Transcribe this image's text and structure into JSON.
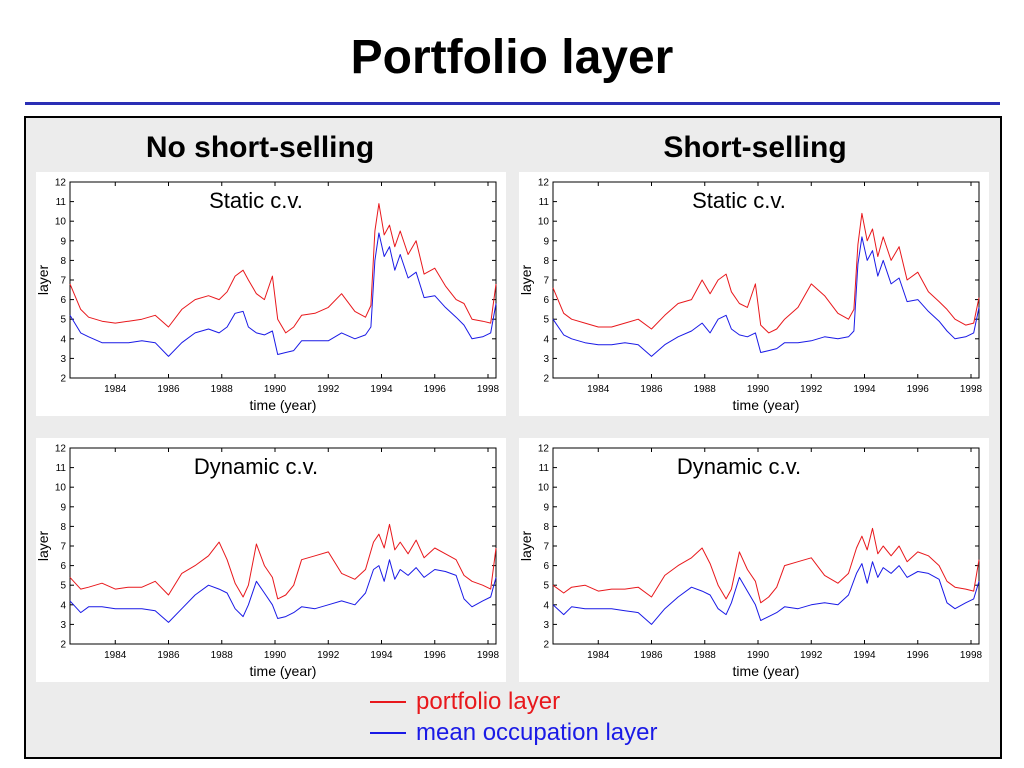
{
  "slide": {
    "title": "Portfolio layer",
    "col_left": "No short-selling",
    "col_right": "Short-selling"
  },
  "legend": [
    {
      "label": "portfolio layer",
      "color": "#e8181c"
    },
    {
      "label": "mean occupation layer",
      "color": "#1a1ae6"
    }
  ],
  "chart_data": [
    {
      "type": "line",
      "id": "nss-static",
      "title": "Static c.v.",
      "xlabel": "time (year)",
      "ylabel": "layer",
      "xlim": [
        1982.3,
        1998.3
      ],
      "ylim": [
        2,
        12
      ],
      "xticks": [
        1984,
        1986,
        1988,
        1990,
        1992,
        1994,
        1996,
        1998
      ],
      "yticks": [
        2,
        3,
        4,
        5,
        6,
        7,
        8,
        9,
        10,
        11,
        12
      ],
      "series": [
        {
          "name": "portfolio layer",
          "color": "#e8181c",
          "x": [
            1982.3,
            1982.7,
            1983.0,
            1983.5,
            1984.0,
            1984.5,
            1985.0,
            1985.5,
            1986.0,
            1986.5,
            1987.0,
            1987.5,
            1987.9,
            1988.2,
            1988.5,
            1988.8,
            1989.0,
            1989.3,
            1989.6,
            1989.9,
            1990.1,
            1990.4,
            1990.7,
            1991.0,
            1991.5,
            1992.0,
            1992.5,
            1993.0,
            1993.4,
            1993.6,
            1993.75,
            1993.9,
            1994.1,
            1994.3,
            1994.5,
            1994.7,
            1995.0,
            1995.3,
            1995.6,
            1996.0,
            1996.4,
            1996.8,
            1997.1,
            1997.4,
            1997.8,
            1998.1,
            1998.3
          ],
          "y": [
            6.8,
            5.5,
            5.1,
            4.9,
            4.8,
            4.9,
            5.0,
            5.2,
            4.6,
            5.5,
            6.0,
            6.2,
            6.0,
            6.4,
            7.2,
            7.5,
            7.0,
            6.3,
            6.0,
            7.2,
            5.0,
            4.3,
            4.6,
            5.2,
            5.3,
            5.6,
            6.3,
            5.4,
            5.1,
            5.7,
            9.5,
            10.9,
            9.3,
            9.8,
            8.7,
            9.5,
            8.3,
            9.0,
            7.3,
            7.6,
            6.7,
            6.0,
            5.8,
            5.0,
            4.9,
            4.8,
            6.8
          ]
        },
        {
          "name": "mean occupation layer",
          "color": "#1a1ae6",
          "x": [
            1982.3,
            1982.7,
            1983.0,
            1983.5,
            1984.0,
            1984.5,
            1985.0,
            1985.5,
            1986.0,
            1986.5,
            1987.0,
            1987.5,
            1987.9,
            1988.2,
            1988.5,
            1988.8,
            1989.0,
            1989.3,
            1989.6,
            1989.9,
            1990.1,
            1990.4,
            1990.7,
            1991.0,
            1991.5,
            1992.0,
            1992.5,
            1993.0,
            1993.4,
            1993.6,
            1993.75,
            1993.9,
            1994.1,
            1994.3,
            1994.5,
            1994.7,
            1995.0,
            1995.3,
            1995.6,
            1996.0,
            1996.4,
            1996.8,
            1997.1,
            1997.4,
            1997.8,
            1998.1,
            1998.3
          ],
          "y": [
            5.2,
            4.3,
            4.1,
            3.8,
            3.8,
            3.8,
            3.9,
            3.8,
            3.1,
            3.8,
            4.3,
            4.5,
            4.3,
            4.6,
            5.3,
            5.4,
            4.6,
            4.3,
            4.2,
            4.4,
            3.2,
            3.3,
            3.4,
            3.9,
            3.9,
            3.9,
            4.3,
            4.0,
            4.2,
            4.6,
            8.0,
            9.4,
            8.2,
            8.7,
            7.5,
            8.3,
            7.1,
            7.4,
            6.1,
            6.2,
            5.6,
            5.1,
            4.7,
            4.0,
            4.1,
            4.3,
            5.8
          ]
        }
      ]
    },
    {
      "type": "line",
      "id": "ss-static",
      "title": "Static c.v.",
      "xlabel": "time (year)",
      "ylabel": "layer",
      "xlim": [
        1982.3,
        1998.3
      ],
      "ylim": [
        2,
        12
      ],
      "xticks": [
        1984,
        1986,
        1988,
        1990,
        1992,
        1994,
        1996,
        1998
      ],
      "yticks": [
        2,
        3,
        4,
        5,
        6,
        7,
        8,
        9,
        10,
        11,
        12
      ],
      "series": [
        {
          "name": "portfolio layer",
          "color": "#e8181c",
          "x": [
            1982.3,
            1982.7,
            1983.0,
            1983.5,
            1984.0,
            1984.5,
            1985.0,
            1985.5,
            1986.0,
            1986.5,
            1987.0,
            1987.5,
            1987.9,
            1988.2,
            1988.5,
            1988.8,
            1989.0,
            1989.3,
            1989.6,
            1989.9,
            1990.1,
            1990.4,
            1990.7,
            1991.0,
            1991.5,
            1992.0,
            1992.5,
            1993.0,
            1993.4,
            1993.6,
            1993.75,
            1993.9,
            1994.1,
            1994.3,
            1994.5,
            1994.7,
            1995.0,
            1995.3,
            1995.6,
            1996.0,
            1996.4,
            1996.8,
            1997.1,
            1997.4,
            1997.8,
            1998.1,
            1998.3
          ],
          "y": [
            6.6,
            5.3,
            5.0,
            4.8,
            4.6,
            4.6,
            4.8,
            5.0,
            4.5,
            5.2,
            5.8,
            6.0,
            7.0,
            6.3,
            7.0,
            7.3,
            6.4,
            5.8,
            5.6,
            6.8,
            4.7,
            4.3,
            4.5,
            5.0,
            5.6,
            6.8,
            6.2,
            5.3,
            5.0,
            5.5,
            8.8,
            10.4,
            9.0,
            9.6,
            8.2,
            9.2,
            8.0,
            8.7,
            7.0,
            7.4,
            6.4,
            5.9,
            5.5,
            5.0,
            4.7,
            4.8,
            6.1
          ]
        },
        {
          "name": "mean occupation layer",
          "color": "#1a1ae6",
          "x": [
            1982.3,
            1982.7,
            1983.0,
            1983.5,
            1984.0,
            1984.5,
            1985.0,
            1985.5,
            1986.0,
            1986.5,
            1987.0,
            1987.5,
            1987.9,
            1988.2,
            1988.5,
            1988.8,
            1989.0,
            1989.3,
            1989.6,
            1989.9,
            1990.1,
            1990.4,
            1990.7,
            1991.0,
            1991.5,
            1992.0,
            1992.5,
            1993.0,
            1993.4,
            1993.6,
            1993.75,
            1993.9,
            1994.1,
            1994.3,
            1994.5,
            1994.7,
            1995.0,
            1995.3,
            1995.6,
            1996.0,
            1996.4,
            1996.8,
            1997.1,
            1997.4,
            1997.8,
            1998.1,
            1998.3
          ],
          "y": [
            5.0,
            4.2,
            4.0,
            3.8,
            3.7,
            3.7,
            3.8,
            3.7,
            3.1,
            3.7,
            4.1,
            4.4,
            4.8,
            4.3,
            5.0,
            5.2,
            4.5,
            4.2,
            4.1,
            4.3,
            3.3,
            3.4,
            3.5,
            3.8,
            3.8,
            3.9,
            4.1,
            4.0,
            4.1,
            4.4,
            7.8,
            9.2,
            8.0,
            8.5,
            7.2,
            8.0,
            6.8,
            7.1,
            5.9,
            6.0,
            5.4,
            4.9,
            4.4,
            4.0,
            4.1,
            4.3,
            5.6
          ]
        }
      ]
    },
    {
      "type": "line",
      "id": "nss-dynamic",
      "title": "Dynamic c.v.",
      "xlabel": "time (year)",
      "ylabel": "layer",
      "xlim": [
        1982.3,
        1998.3
      ],
      "ylim": [
        2,
        12
      ],
      "xticks": [
        1984,
        1986,
        1988,
        1990,
        1992,
        1994,
        1996,
        1998
      ],
      "yticks": [
        2,
        3,
        4,
        5,
        6,
        7,
        8,
        9,
        10,
        11,
        12
      ],
      "series": [
        {
          "name": "portfolio layer",
          "color": "#e8181c",
          "x": [
            1982.3,
            1982.7,
            1983.0,
            1983.5,
            1984.0,
            1984.5,
            1985.0,
            1985.5,
            1986.0,
            1986.5,
            1987.0,
            1987.5,
            1987.9,
            1988.2,
            1988.5,
            1988.8,
            1989.0,
            1989.3,
            1989.6,
            1989.9,
            1990.1,
            1990.4,
            1990.7,
            1991.0,
            1991.5,
            1992.0,
            1992.5,
            1993.0,
            1993.4,
            1993.7,
            1993.9,
            1994.1,
            1994.3,
            1994.5,
            1994.7,
            1995.0,
            1995.3,
            1995.6,
            1996.0,
            1996.4,
            1996.8,
            1997.1,
            1997.4,
            1997.8,
            1998.1,
            1998.3
          ],
          "y": [
            5.4,
            4.8,
            4.9,
            5.1,
            4.8,
            4.9,
            4.9,
            5.2,
            4.5,
            5.6,
            6.0,
            6.5,
            7.2,
            6.3,
            5.1,
            4.4,
            5.0,
            7.1,
            6.0,
            5.4,
            4.3,
            4.5,
            5.0,
            6.3,
            6.5,
            6.7,
            5.6,
            5.3,
            5.8,
            7.2,
            7.6,
            6.9,
            8.1,
            6.8,
            7.2,
            6.6,
            7.3,
            6.4,
            6.9,
            6.6,
            6.3,
            5.5,
            5.2,
            5.0,
            4.8,
            6.9
          ]
        },
        {
          "name": "mean occupation layer",
          "color": "#1a1ae6",
          "x": [
            1982.3,
            1982.7,
            1983.0,
            1983.5,
            1984.0,
            1984.5,
            1985.0,
            1985.5,
            1986.0,
            1986.5,
            1987.0,
            1987.5,
            1987.9,
            1988.2,
            1988.5,
            1988.8,
            1989.0,
            1989.3,
            1989.6,
            1989.9,
            1990.1,
            1990.4,
            1990.7,
            1991.0,
            1991.5,
            1992.0,
            1992.5,
            1993.0,
            1993.4,
            1993.7,
            1993.9,
            1994.1,
            1994.3,
            1994.5,
            1994.7,
            1995.0,
            1995.3,
            1995.6,
            1996.0,
            1996.4,
            1996.8,
            1997.1,
            1997.4,
            1997.8,
            1998.1,
            1998.3
          ],
          "y": [
            4.2,
            3.6,
            3.9,
            3.9,
            3.8,
            3.8,
            3.8,
            3.7,
            3.1,
            3.8,
            4.5,
            5.0,
            4.8,
            4.6,
            3.8,
            3.4,
            4.0,
            5.2,
            4.6,
            4.0,
            3.3,
            3.4,
            3.6,
            3.9,
            3.8,
            4.0,
            4.2,
            4.0,
            4.6,
            5.8,
            6.0,
            5.2,
            6.3,
            5.3,
            5.8,
            5.5,
            5.9,
            5.4,
            5.8,
            5.7,
            5.5,
            4.3,
            3.9,
            4.2,
            4.4,
            5.4
          ]
        }
      ]
    },
    {
      "type": "line",
      "id": "ss-dynamic",
      "title": "Dynamic c.v.",
      "xlabel": "time (year)",
      "ylabel": "layer",
      "xlim": [
        1982.3,
        1998.3
      ],
      "ylim": [
        2,
        12
      ],
      "xticks": [
        1984,
        1986,
        1988,
        1990,
        1992,
        1994,
        1996,
        1998
      ],
      "yticks": [
        2,
        3,
        4,
        5,
        6,
        7,
        8,
        9,
        10,
        11,
        12
      ],
      "series": [
        {
          "name": "portfolio layer",
          "color": "#e8181c",
          "x": [
            1982.3,
            1982.7,
            1983.0,
            1983.5,
            1984.0,
            1984.5,
            1985.0,
            1985.5,
            1986.0,
            1986.5,
            1987.0,
            1987.5,
            1987.9,
            1988.2,
            1988.5,
            1988.8,
            1989.0,
            1989.3,
            1989.6,
            1989.9,
            1990.1,
            1990.4,
            1990.7,
            1991.0,
            1991.5,
            1992.0,
            1992.5,
            1993.0,
            1993.4,
            1993.7,
            1993.9,
            1994.1,
            1994.3,
            1994.5,
            1994.7,
            1995.0,
            1995.3,
            1995.6,
            1996.0,
            1996.4,
            1996.8,
            1997.1,
            1997.4,
            1997.8,
            1998.1,
            1998.3
          ],
          "y": [
            5.0,
            4.6,
            4.9,
            5.0,
            4.7,
            4.8,
            4.8,
            4.9,
            4.4,
            5.5,
            6.0,
            6.4,
            6.9,
            6.1,
            5.0,
            4.3,
            4.8,
            6.7,
            5.8,
            5.2,
            4.1,
            4.4,
            4.9,
            6.0,
            6.2,
            6.4,
            5.5,
            5.1,
            5.6,
            6.9,
            7.5,
            6.8,
            7.9,
            6.6,
            7.0,
            6.5,
            7.0,
            6.2,
            6.7,
            6.5,
            6.0,
            5.2,
            4.9,
            4.8,
            4.7,
            6.3
          ]
        },
        {
          "name": "mean occupation layer",
          "color": "#1a1ae6",
          "x": [
            1982.3,
            1982.7,
            1983.0,
            1983.5,
            1984.0,
            1984.5,
            1985.0,
            1985.5,
            1986.0,
            1986.5,
            1987.0,
            1987.5,
            1987.9,
            1988.2,
            1988.5,
            1988.8,
            1989.0,
            1989.3,
            1989.6,
            1989.9,
            1990.1,
            1990.4,
            1990.7,
            1991.0,
            1991.5,
            1992.0,
            1992.5,
            1993.0,
            1993.4,
            1993.7,
            1993.9,
            1994.1,
            1994.3,
            1994.5,
            1994.7,
            1995.0,
            1995.3,
            1995.6,
            1996.0,
            1996.4,
            1996.8,
            1997.1,
            1997.4,
            1997.8,
            1998.1,
            1998.3
          ],
          "y": [
            4.0,
            3.5,
            3.9,
            3.8,
            3.8,
            3.8,
            3.7,
            3.6,
            3.0,
            3.8,
            4.4,
            4.9,
            4.7,
            4.5,
            3.8,
            3.5,
            4.1,
            5.4,
            4.7,
            4.0,
            3.2,
            3.4,
            3.6,
            3.9,
            3.8,
            4.0,
            4.1,
            4.0,
            4.5,
            5.6,
            6.1,
            5.1,
            6.2,
            5.4,
            5.9,
            5.6,
            6.0,
            5.4,
            5.7,
            5.6,
            5.3,
            4.1,
            3.8,
            4.1,
            4.3,
            5.2
          ]
        }
      ]
    }
  ]
}
